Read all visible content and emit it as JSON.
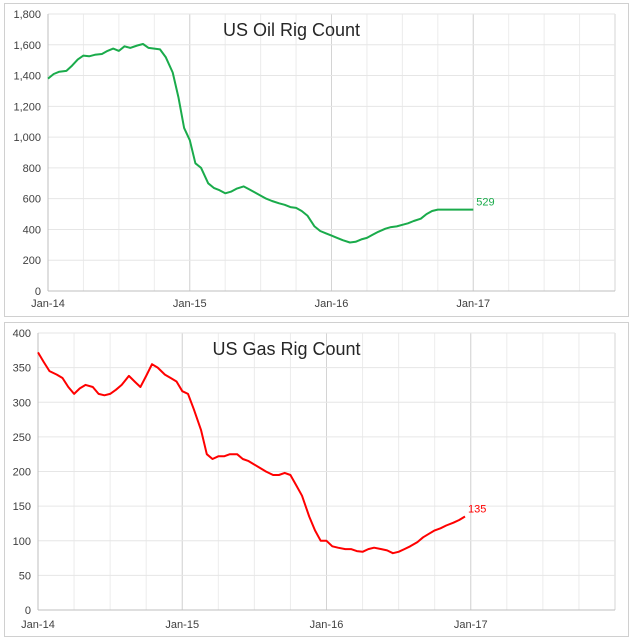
{
  "chart_data": [
    {
      "type": "line",
      "title": "US Oil Rig Count",
      "xlabel": "",
      "ylabel": "",
      "ylim": [
        0,
        1800
      ],
      "yticks": [
        0,
        200,
        400,
        600,
        800,
        "1,000",
        "1,200",
        "1,400",
        "1,600",
        "1,800"
      ],
      "ytick_values": [
        0,
        200,
        400,
        600,
        800,
        1000,
        1200,
        1400,
        1600,
        1800
      ],
      "xticks": [
        "Jan-14",
        "Jan-15",
        "Jan-16",
        "Jan-17"
      ],
      "xlim_years": [
        2014,
        2018
      ],
      "grid": true,
      "color": "#1aab4b",
      "end_label": "529",
      "series": [
        {
          "x": [
            2014.0,
            2014.04,
            2014.08,
            2014.13,
            2014.17,
            2014.21,
            2014.25,
            2014.29,
            2014.33,
            2014.38,
            2014.42,
            2014.46,
            2014.5,
            2014.54,
            2014.58,
            2014.63,
            2014.67,
            2014.71,
            2014.75,
            2014.79,
            2014.83,
            2014.88,
            2014.92,
            2014.96,
            2015.0,
            2015.04,
            2015.08,
            2015.13,
            2015.17,
            2015.21,
            2015.25,
            2015.29,
            2015.33,
            2015.38,
            2015.42,
            2015.46,
            2015.5,
            2015.54,
            2015.58,
            2015.63,
            2015.67,
            2015.71,
            2015.75,
            2015.79,
            2015.83,
            2015.88,
            2015.92,
            2015.96,
            2016.0,
            2016.04,
            2016.08,
            2016.13,
            2016.17,
            2016.21,
            2016.25,
            2016.29,
            2016.33,
            2016.38,
            2016.42,
            2016.46,
            2016.5,
            2016.54,
            2016.58,
            2016.63,
            2016.67,
            2016.71,
            2016.75,
            2016.79,
            2016.83,
            2016.88,
            2016.92,
            2016.96,
            2017.0
          ],
          "y": [
            1380,
            1410,
            1425,
            1430,
            1465,
            1505,
            1530,
            1525,
            1535,
            1540,
            1560,
            1575,
            1560,
            1590,
            1580,
            1595,
            1605,
            1580,
            1575,
            1570,
            1520,
            1420,
            1260,
            1060,
            980,
            830,
            800,
            700,
            670,
            655,
            635,
            645,
            665,
            680,
            660,
            640,
            620,
            600,
            585,
            570,
            560,
            545,
            540,
            520,
            490,
            420,
            390,
            375,
            360,
            345,
            330,
            315,
            320,
            335,
            345,
            365,
            385,
            405,
            415,
            420,
            430,
            440,
            455,
            470,
            500,
            520,
            529,
            529,
            529,
            529,
            529,
            529,
            529
          ]
        }
      ]
    },
    {
      "type": "line",
      "title": "US Gas Rig Count",
      "xlabel": "",
      "ylabel": "",
      "ylim": [
        0,
        400
      ],
      "yticks": [
        0,
        50,
        100,
        150,
        200,
        250,
        300,
        350,
        400
      ],
      "ytick_values": [
        0,
        50,
        100,
        150,
        200,
        250,
        300,
        350,
        400
      ],
      "xticks": [
        "Jan-14",
        "Jan-15",
        "Jan-16",
        "Jan-17"
      ],
      "xlim_years": [
        2014,
        2018
      ],
      "grid": true,
      "color": "#ff0000",
      "end_label": "135",
      "series": [
        {
          "x": [
            2014.0,
            2014.04,
            2014.08,
            2014.13,
            2014.17,
            2014.21,
            2014.25,
            2014.29,
            2014.33,
            2014.38,
            2014.42,
            2014.46,
            2014.5,
            2014.54,
            2014.58,
            2014.63,
            2014.67,
            2014.71,
            2014.75,
            2014.79,
            2014.83,
            2014.88,
            2014.92,
            2014.96,
            2015.0,
            2015.04,
            2015.08,
            2015.13,
            2015.17,
            2015.21,
            2015.25,
            2015.29,
            2015.33,
            2015.38,
            2015.42,
            2015.46,
            2015.5,
            2015.54,
            2015.58,
            2015.63,
            2015.67,
            2015.71,
            2015.75,
            2015.79,
            2015.83,
            2015.88,
            2015.92,
            2015.96,
            2016.0,
            2016.04,
            2016.08,
            2016.13,
            2016.17,
            2016.21,
            2016.25,
            2016.29,
            2016.33,
            2016.38,
            2016.42,
            2016.46,
            2016.5,
            2016.54,
            2016.58,
            2016.63,
            2016.67,
            2016.71,
            2016.75,
            2016.79,
            2016.83,
            2016.88,
            2016.92,
            2016.96
          ],
          "y": [
            372,
            358,
            345,
            340,
            335,
            322,
            312,
            320,
            325,
            322,
            312,
            310,
            312,
            318,
            325,
            338,
            330,
            322,
            338,
            355,
            350,
            340,
            335,
            330,
            316,
            312,
            290,
            260,
            225,
            218,
            222,
            222,
            225,
            225,
            218,
            215,
            210,
            205,
            200,
            195,
            195,
            198,
            195,
            180,
            165,
            135,
            115,
            100,
            100,
            92,
            90,
            88,
            88,
            85,
            84,
            88,
            90,
            88,
            86,
            82,
            84,
            88,
            92,
            98,
            105,
            110,
            115,
            118,
            122,
            126,
            130,
            135
          ]
        }
      ]
    }
  ]
}
